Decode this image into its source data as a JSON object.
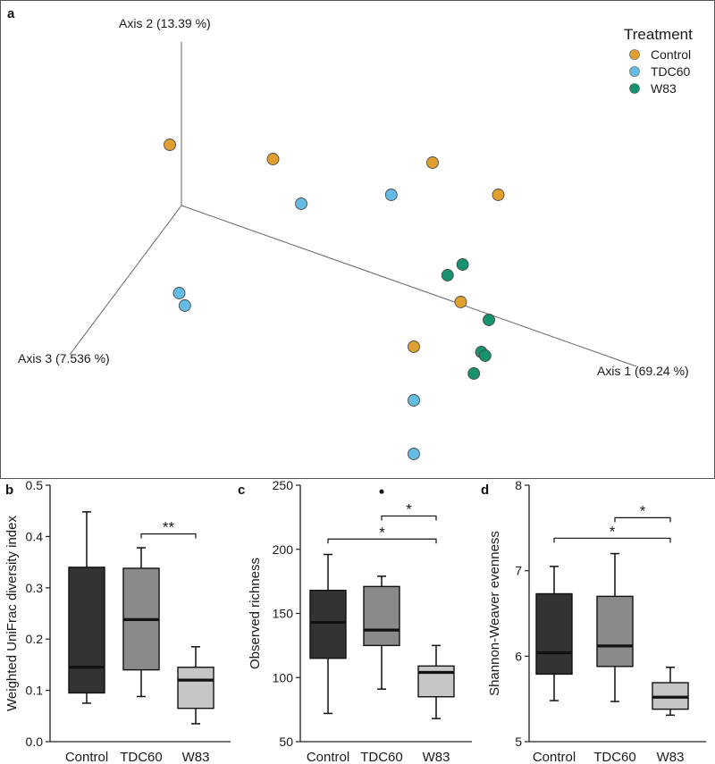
{
  "chart_data": [
    {
      "panel": "a",
      "type": "scatter",
      "subtype": "3D PCoA ordination",
      "axes": [
        {
          "id": "axis1",
          "label": "Axis 1 (69.24 %)"
        },
        {
          "id": "axis2",
          "label": "Axis 2 (13.39 %)"
        },
        {
          "id": "axis3",
          "label": "Axis 3 (7.536 %)"
        }
      ],
      "legend": {
        "title": "Treatment",
        "position": "top-right",
        "entries": [
          {
            "label": "Control",
            "color": "#e0a030"
          },
          {
            "label": "TDC60",
            "color": "#62bce6"
          },
          {
            "label": "W83",
            "color": "#16936e"
          }
        ]
      },
      "groups": [
        {
          "name": "Control",
          "points": [
            [
              -1.0,
              0.38
            ],
            [
              -0.45,
              0.3
            ],
            [
              0.4,
              0.28
            ],
            [
              0.75,
              0.1
            ],
            [
              0.55,
              -0.5
            ],
            [
              0.3,
              -0.75
            ]
          ]
        },
        {
          "name": "TDC60",
          "points": [
            [
              -0.95,
              -0.45
            ],
            [
              -0.92,
              -0.52
            ],
            [
              -0.3,
              0.05
            ],
            [
              0.18,
              0.1
            ],
            [
              0.3,
              -1.05
            ],
            [
              0.3,
              -1.35
            ]
          ]
        },
        {
          "name": "W83",
          "points": [
            [
              0.48,
              -0.35
            ],
            [
              0.56,
              -0.29
            ],
            [
              0.7,
              -0.6
            ],
            [
              0.66,
              -0.78
            ],
            [
              0.68,
              -0.8
            ],
            [
              0.62,
              -0.9
            ]
          ]
        }
      ]
    },
    {
      "panel": "b",
      "type": "box",
      "ylabel": "Weighted UniFrac diversity index",
      "xlabel": "",
      "ylim": [
        0.0,
        0.5
      ],
      "yticks": [
        "0.0",
        "0.1",
        "0.2",
        "0.3",
        "0.4",
        "0.5"
      ],
      "categories": [
        "Control",
        "TDC60",
        "W83"
      ],
      "boxes": [
        {
          "category": "Control",
          "whisker_low": 0.075,
          "q1": 0.095,
          "median": 0.145,
          "q3": 0.34,
          "whisker_high": 0.448,
          "fill": "#333333",
          "outliers": []
        },
        {
          "category": "TDC60",
          "whisker_low": 0.088,
          "q1": 0.14,
          "median": 0.238,
          "q3": 0.338,
          "whisker_high": 0.378,
          "fill": "#8a8a8a",
          "outliers": []
        },
        {
          "category": "W83",
          "whisker_low": 0.035,
          "q1": 0.065,
          "median": 0.12,
          "q3": 0.145,
          "whisker_high": 0.185,
          "fill": "#c6c6c6",
          "outliers": []
        }
      ],
      "significance": [
        {
          "from": "TDC60",
          "to": "W83",
          "level": 0.405,
          "label": "**"
        }
      ]
    },
    {
      "panel": "c",
      "type": "box",
      "ylabel": "Observed richness",
      "xlabel": "",
      "ylim": [
        50,
        250
      ],
      "yticks": [
        "50",
        "100",
        "150",
        "200",
        "250"
      ],
      "categories": [
        "Control",
        "TDC60",
        "W83"
      ],
      "boxes": [
        {
          "category": "Control",
          "whisker_low": 72,
          "q1": 115,
          "median": 143,
          "q3": 168,
          "whisker_high": 196,
          "fill": "#333333",
          "outliers": []
        },
        {
          "category": "TDC60",
          "whisker_low": 91,
          "q1": 125,
          "median": 137,
          "q3": 171,
          "whisker_high": 179,
          "fill": "#8a8a8a",
          "outliers": [
            245
          ]
        },
        {
          "category": "W83",
          "whisker_low": 68,
          "q1": 85,
          "median": 104,
          "q3": 109,
          "whisker_high": 125,
          "fill": "#c6c6c6",
          "outliers": []
        }
      ],
      "significance": [
        {
          "from": "TDC60",
          "to": "W83",
          "level": 226,
          "label": "*"
        },
        {
          "from": "Control",
          "to": "W83",
          "level": 208,
          "label": "*"
        }
      ]
    },
    {
      "panel": "d",
      "type": "box",
      "ylabel": "Shannon-Weaver evenness",
      "xlabel": "",
      "ylim": [
        5,
        8
      ],
      "yticks": [
        "5",
        "6",
        "7",
        "8"
      ],
      "categories": [
        "Control",
        "TDC60",
        "W83"
      ],
      "boxes": [
        {
          "category": "Control",
          "whisker_low": 5.48,
          "q1": 5.79,
          "median": 6.04,
          "q3": 6.73,
          "whisker_high": 7.05,
          "fill": "#333333",
          "outliers": []
        },
        {
          "category": "TDC60",
          "whisker_low": 5.47,
          "q1": 5.88,
          "median": 6.12,
          "q3": 6.7,
          "whisker_high": 7.2,
          "fill": "#8a8a8a",
          "outliers": []
        },
        {
          "category": "W83",
          "whisker_low": 5.31,
          "q1": 5.38,
          "median": 5.52,
          "q3": 5.69,
          "whisker_high": 5.87,
          "fill": "#c6c6c6",
          "outliers": []
        }
      ],
      "significance": [
        {
          "from": "TDC60",
          "to": "W83",
          "level": 7.62,
          "label": "*"
        },
        {
          "from": "Control",
          "to": "W83",
          "level": 7.38,
          "label": "*"
        }
      ]
    }
  ]
}
